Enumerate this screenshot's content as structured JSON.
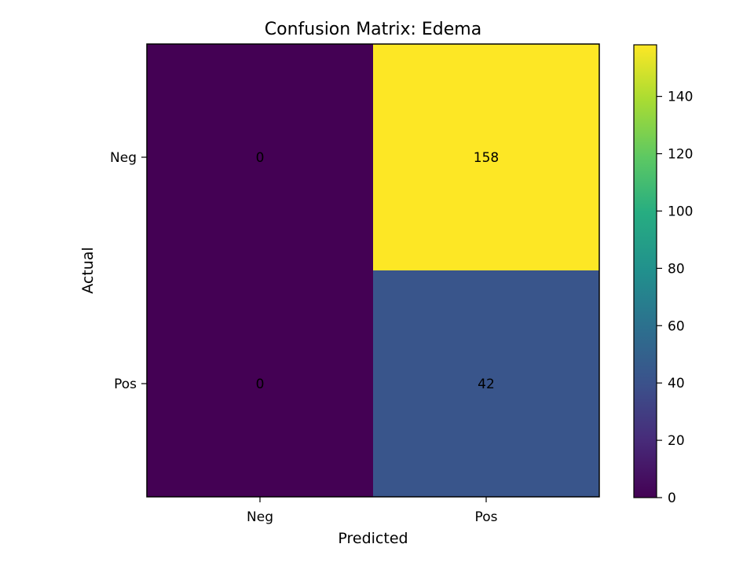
{
  "chart_data": {
    "type": "heatmap",
    "title": "Confusion Matrix: Edema",
    "xlabel": "Predicted",
    "ylabel": "Actual",
    "x_categories": [
      "Neg",
      "Pos"
    ],
    "y_categories": [
      "Neg",
      "Pos"
    ],
    "values": [
      [
        0,
        158
      ],
      [
        0,
        42
      ]
    ],
    "colorbar": {
      "range": [
        0,
        158
      ],
      "ticks": [
        0,
        20,
        40,
        60,
        80,
        100,
        120,
        140
      ],
      "colormap": "viridis"
    }
  }
}
